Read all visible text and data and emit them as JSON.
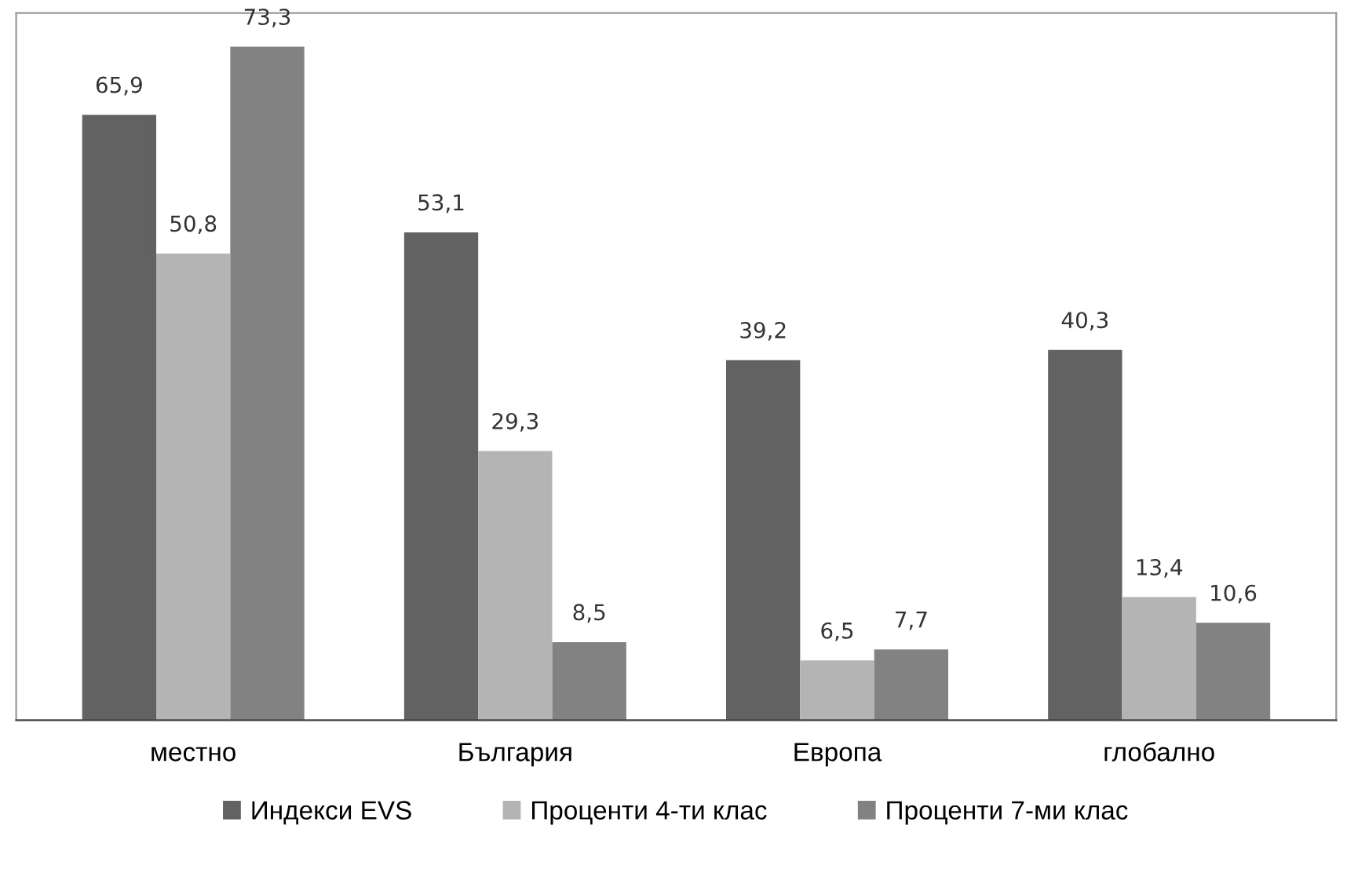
{
  "chart_data": {
    "type": "bar",
    "categories": [
      "местно",
      "България",
      "Европа",
      "глобално"
    ],
    "series": [
      {
        "name": "Индекси EVS",
        "color": "#626262",
        "values": [
          65.9,
          53.1,
          39.2,
          40.3
        ],
        "value_labels": [
          "65,9",
          "53,1",
          "39,2",
          "40,3"
        ]
      },
      {
        "name": "Проценти 4-ти клас",
        "color": "#b4b4b4",
        "values": [
          50.8,
          29.3,
          6.5,
          13.4
        ],
        "value_labels": [
          "50,8",
          "29,3",
          "6,5",
          "13,4"
        ]
      },
      {
        "name": "Проценти 7-ми клас",
        "color": "#828282",
        "values": [
          73.3,
          8.5,
          7.7,
          10.6
        ],
        "value_labels": [
          "73,3",
          "8,5",
          "7,7",
          "10,6"
        ]
      }
    ],
    "legend": "bottom",
    "grid": false,
    "tick_labels": "x"
  }
}
